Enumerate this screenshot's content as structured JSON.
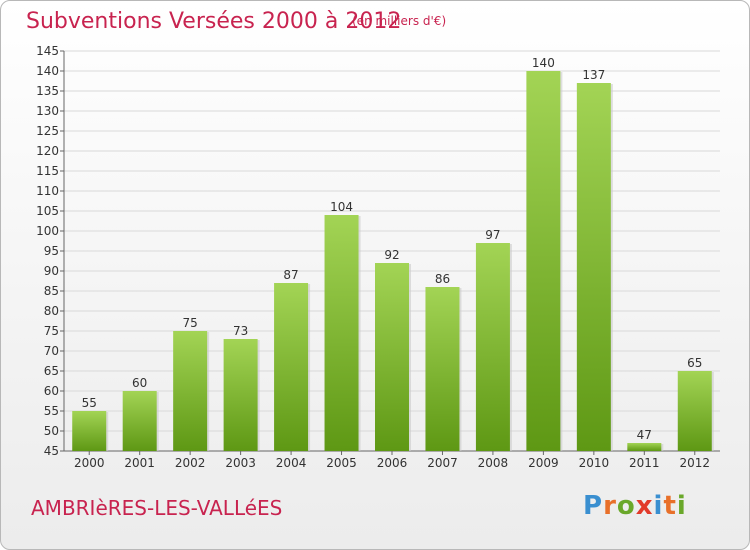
{
  "header": {
    "title": "Subventions Versées 2000 à 2012",
    "subtitle": "(en milliers d'€)"
  },
  "footer": {
    "commune": "AMBRIèRES-LES-VALLéES",
    "logo": "Proxiti"
  },
  "colors": {
    "title": "#c8234f",
    "bar_top": "#9fd04a",
    "bar_bottom": "#5f9a14",
    "grid": "#d8d8d8"
  },
  "chart_data": {
    "type": "bar",
    "title": "Subventions Versées 2000 à 2012",
    "subtitle": "(en milliers d'€)",
    "categories": [
      "2000",
      "2001",
      "2002",
      "2003",
      "2004",
      "2005",
      "2006",
      "2007",
      "2008",
      "2009",
      "2010",
      "2011",
      "2012"
    ],
    "values": [
      55,
      60,
      75,
      73,
      87,
      104,
      92,
      86,
      97,
      140,
      137,
      47,
      65
    ],
    "ylim": [
      45,
      145
    ],
    "ytick_step": 5,
    "grid": true,
    "xlabel": "",
    "ylabel": ""
  }
}
